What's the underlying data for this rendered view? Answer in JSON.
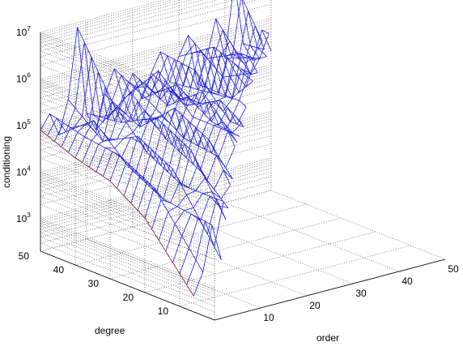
{
  "chart_data": {
    "type": "surface",
    "title": "",
    "xlabel": "order",
    "ylabel": "degree",
    "zlabel": "conditioning",
    "zscale": "log",
    "grid": true,
    "x_ticks": [
      "10",
      "20",
      "30",
      "40",
      "50"
    ],
    "y_ticks": [
      "10",
      "20",
      "30",
      "40",
      "50"
    ],
    "z_ticks": [
      {
        "base": "10",
        "exp": "3"
      },
      {
        "base": "10",
        "exp": "4"
      },
      {
        "base": "10",
        "exp": "5"
      },
      {
        "base": "10",
        "exp": "6"
      },
      {
        "base": "10",
        "exp": "7"
      }
    ],
    "xlim": [
      0,
      50
    ],
    "ylim": [
      0,
      50
    ],
    "zlim_log10": [
      2.3,
      7.0
    ],
    "domain": "order <= degree",
    "grid_step": 2,
    "surface_log10_by_degree": {
      "description": "approximate log10(conditioning) along order for each sampled degree; order sampled from 0 in steps of 2 up to degree",
      "degree_50": [
        4.9,
        5.2,
        4.7,
        5.4,
        6.9,
        5.0,
        4.6,
        5.3,
        5.8,
        5.1,
        5.6,
        5.0,
        5.5,
        5.9,
        5.2,
        5.7,
        6.1,
        5.0,
        5.5,
        6.3,
        5.4,
        7.0,
        5.6,
        5.2,
        5.8,
        5.3
      ],
      "degree_40": [
        4.6,
        5.0,
        5.3,
        4.8,
        5.6,
        5.1,
        5.7,
        4.9,
        5.4,
        6.0,
        5.2,
        5.6,
        5.1,
        5.8,
        5.3,
        6.2,
        5.5,
        5.0,
        5.9,
        5.4,
        5.7
      ],
      "degree_30": [
        4.4,
        4.9,
        4.6,
        5.2,
        4.8,
        5.5,
        5.0,
        5.6,
        4.9,
        5.3,
        5.8,
        5.1,
        5.5,
        5.0,
        5.4,
        5.9
      ],
      "degree_20": [
        3.9,
        4.5,
        4.2,
        4.8,
        4.4,
        5.1,
        4.6,
        5.2,
        4.8,
        5.3,
        5.0
      ],
      "degree_10": [
        3.0,
        3.5,
        4.1,
        3.7,
        4.4,
        3.9
      ]
    },
    "series": [
      {
        "color": "#1f1fd8"
      },
      {
        "color": "#7a1030"
      }
    ]
  }
}
